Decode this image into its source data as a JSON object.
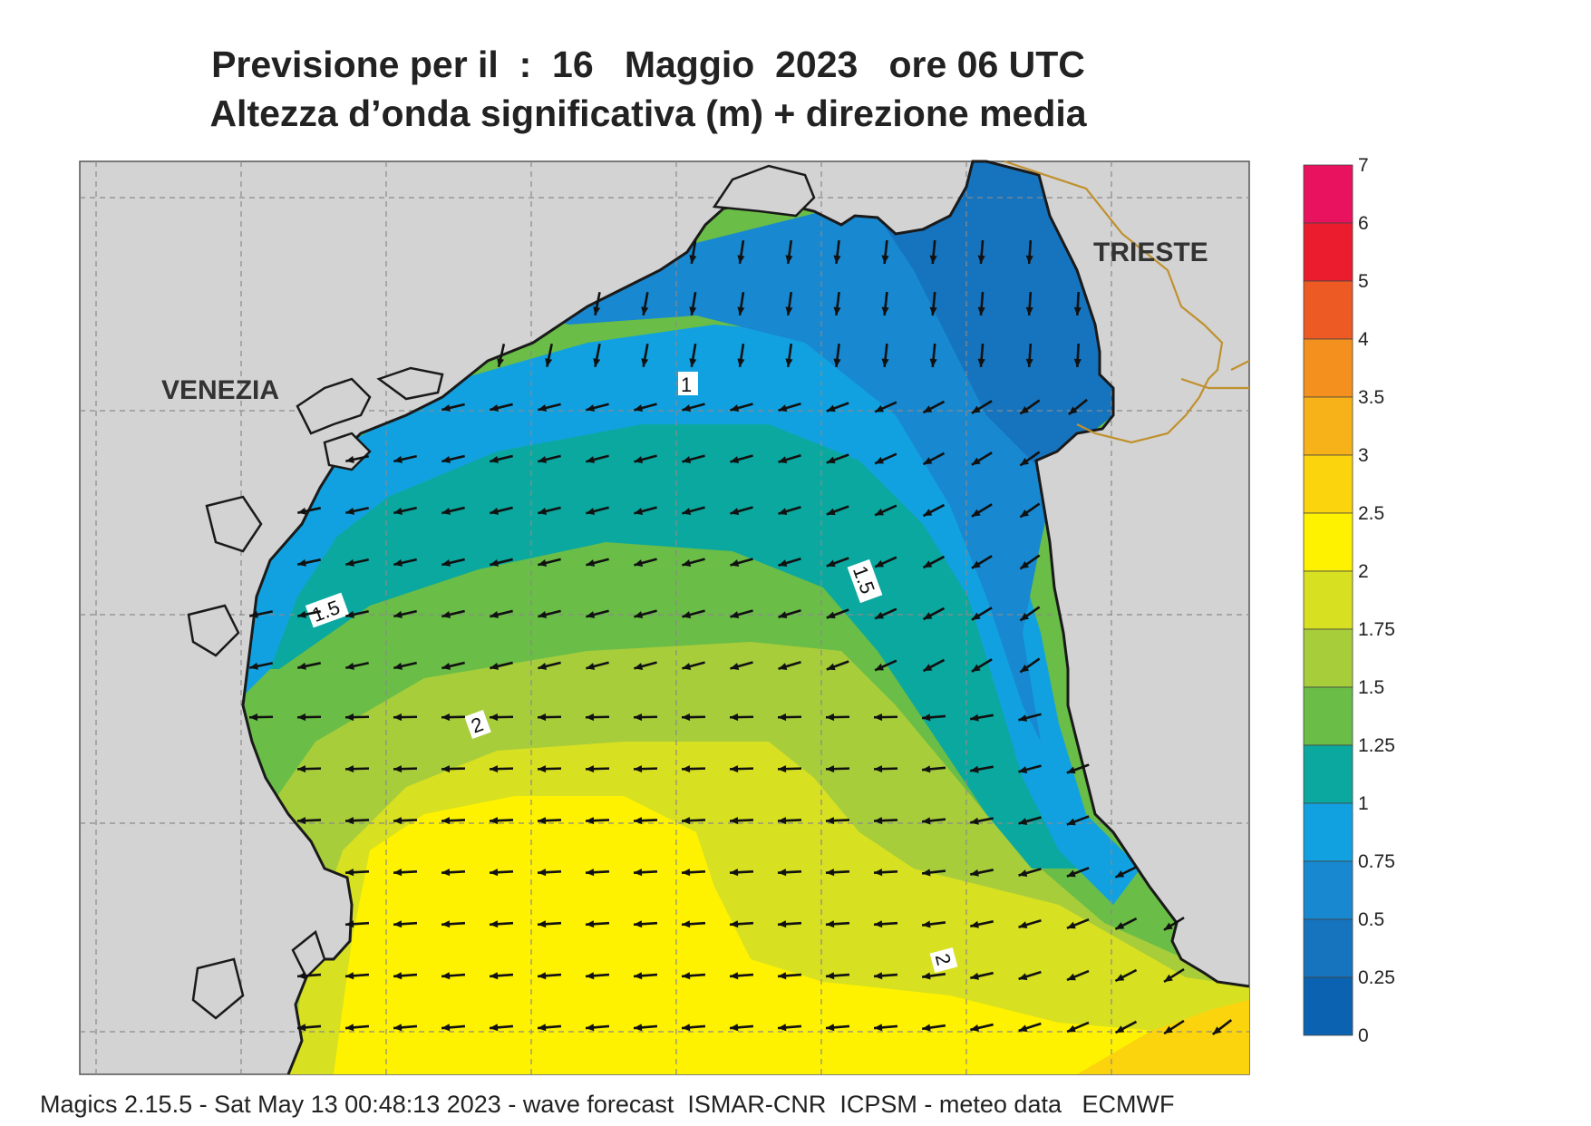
{
  "title_line1": "Previsione per il  :  16   Maggio  2023   ore 06 UTC",
  "title_line2": "Altezza d’onda significativa (m) + direzione media",
  "footer": "Magics 2.15.5 - Sat May 13 00:48:13 2023 - wave forecast  ISMAR-CNR  ICPSM - meteo data   ECMWF",
  "cities": [
    "VENEZIA",
    "TRIESTE"
  ],
  "contour_labels": [
    "1",
    "1.5",
    "1.5",
    "2",
    "2"
  ],
  "legend": {
    "labels": [
      "7",
      "6",
      "5",
      "4",
      "3.5",
      "3",
      "2.5",
      "2",
      "1.75",
      "1.5",
      "1.25",
      "1",
      "0.75",
      "0.5",
      "0.25",
      "0"
    ],
    "colors": [
      "#e8125f",
      "#ea1c2d",
      "#ee5a23",
      "#f4901e",
      "#f7b21a",
      "#fbd40e",
      "#fff200",
      "#d7e021",
      "#a7cd3b",
      "#6abd46",
      "#0ba8a0",
      "#12a1e0",
      "#1888d0",
      "#1673bd",
      "#0a62b0"
    ]
  },
  "colors": {
    "land": "#d3d3d3",
    "coast": "#1a1a1a",
    "border": "#c0902e",
    "grid": "#8a8a8a",
    "arrow": "#111111"
  }
}
